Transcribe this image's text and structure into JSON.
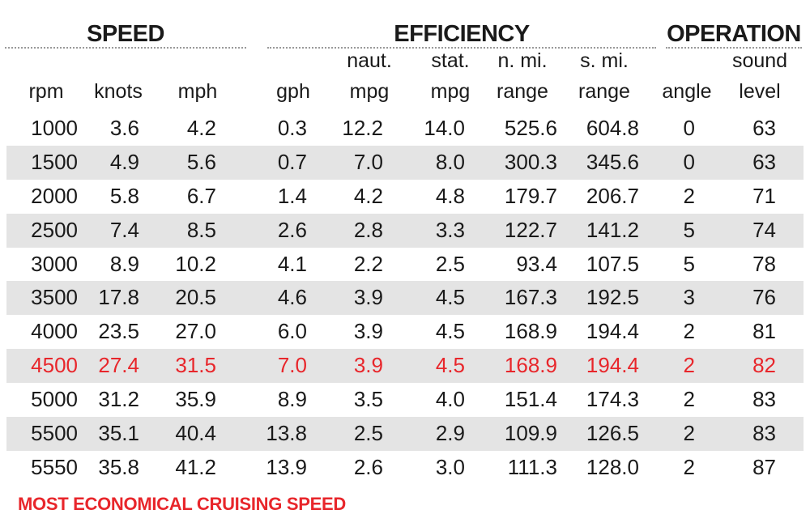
{
  "groups": {
    "speed": "SPEED",
    "efficiency": "EFFICIENCY",
    "operation": "OPERATION"
  },
  "headers": [
    {
      "line1": "",
      "line2": "rpm"
    },
    {
      "line1": "",
      "line2": "knots"
    },
    {
      "line1": "",
      "line2": "mph"
    },
    {
      "line1": "",
      "line2": "gph"
    },
    {
      "line1": "naut.",
      "line2": "mpg"
    },
    {
      "line1": "stat.",
      "line2": "mpg"
    },
    {
      "line1": "n. mi.",
      "line2": "range"
    },
    {
      "line1": "s. mi.",
      "line2": "range"
    },
    {
      "line1": "",
      "line2": "angle"
    },
    {
      "line1": "sound",
      "line2": "level"
    }
  ],
  "rows": [
    [
      "1000",
      "3.6",
      "4.2",
      "0.3",
      "12.2",
      "14.0",
      "525.6",
      "604.8",
      "0",
      "63"
    ],
    [
      "1500",
      "4.9",
      "5.6",
      "0.7",
      "7.0",
      "8.0",
      "300.3",
      "345.6",
      "0",
      "63"
    ],
    [
      "2000",
      "5.8",
      "6.7",
      "1.4",
      "4.2",
      "4.8",
      "179.7",
      "206.7",
      "2",
      "71"
    ],
    [
      "2500",
      "7.4",
      "8.5",
      "2.6",
      "2.8",
      "3.3",
      "122.7",
      "141.2",
      "5",
      "74"
    ],
    [
      "3000",
      "8.9",
      "10.2",
      "4.1",
      "2.2",
      "2.5",
      "93.4",
      "107.5",
      "5",
      "78"
    ],
    [
      "3500",
      "17.8",
      "20.5",
      "4.6",
      "3.9",
      "4.5",
      "167.3",
      "192.5",
      "3",
      "76"
    ],
    [
      "4000",
      "23.5",
      "27.0",
      "6.0",
      "3.9",
      "4.5",
      "168.9",
      "194.4",
      "2",
      "81"
    ],
    [
      "4500",
      "27.4",
      "31.5",
      "7.0",
      "3.9",
      "4.5",
      "168.9",
      "194.4",
      "2",
      "82"
    ],
    [
      "5000",
      "31.2",
      "35.9",
      "8.9",
      "3.5",
      "4.0",
      "151.4",
      "174.3",
      "2",
      "83"
    ],
    [
      "5500",
      "35.1",
      "40.4",
      "13.8",
      "2.5",
      "2.9",
      "109.9",
      "126.5",
      "2",
      "83"
    ],
    [
      "5550",
      "35.8",
      "41.2",
      "13.9",
      "2.6",
      "3.0",
      "111.3",
      "128.0",
      "2",
      "87"
    ]
  ],
  "highlight_row": 7,
  "footnote": "MOST ECONOMICAL CRUISING SPEED",
  "colors": {
    "highlight": "#e8262b",
    "row_shade": "#e4e4e4",
    "text": "#1a1a1a"
  }
}
